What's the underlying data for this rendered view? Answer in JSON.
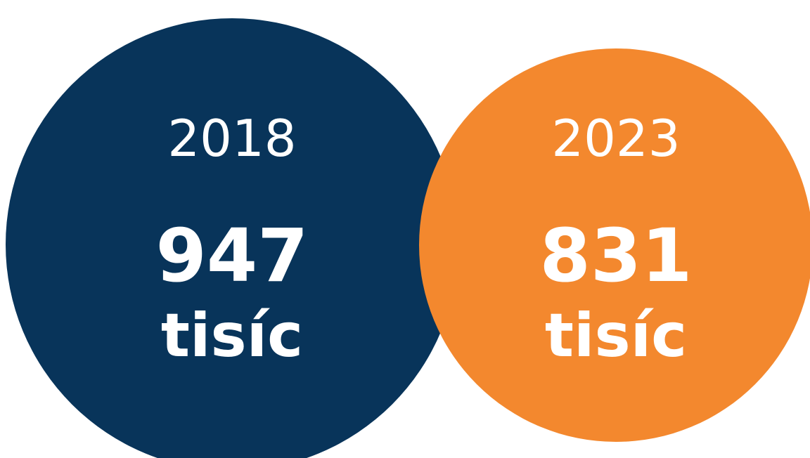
{
  "chart_data": {
    "type": "bubble",
    "items": [
      {
        "year": "2018",
        "value": 947,
        "value_label": "947",
        "unit": "tisíc",
        "color": "#08345a"
      },
      {
        "year": "2023",
        "value": 831,
        "value_label": "831",
        "unit": "tisíc",
        "color": "#f3882e"
      }
    ],
    "title": "",
    "xlabel": "",
    "ylabel": ""
  }
}
